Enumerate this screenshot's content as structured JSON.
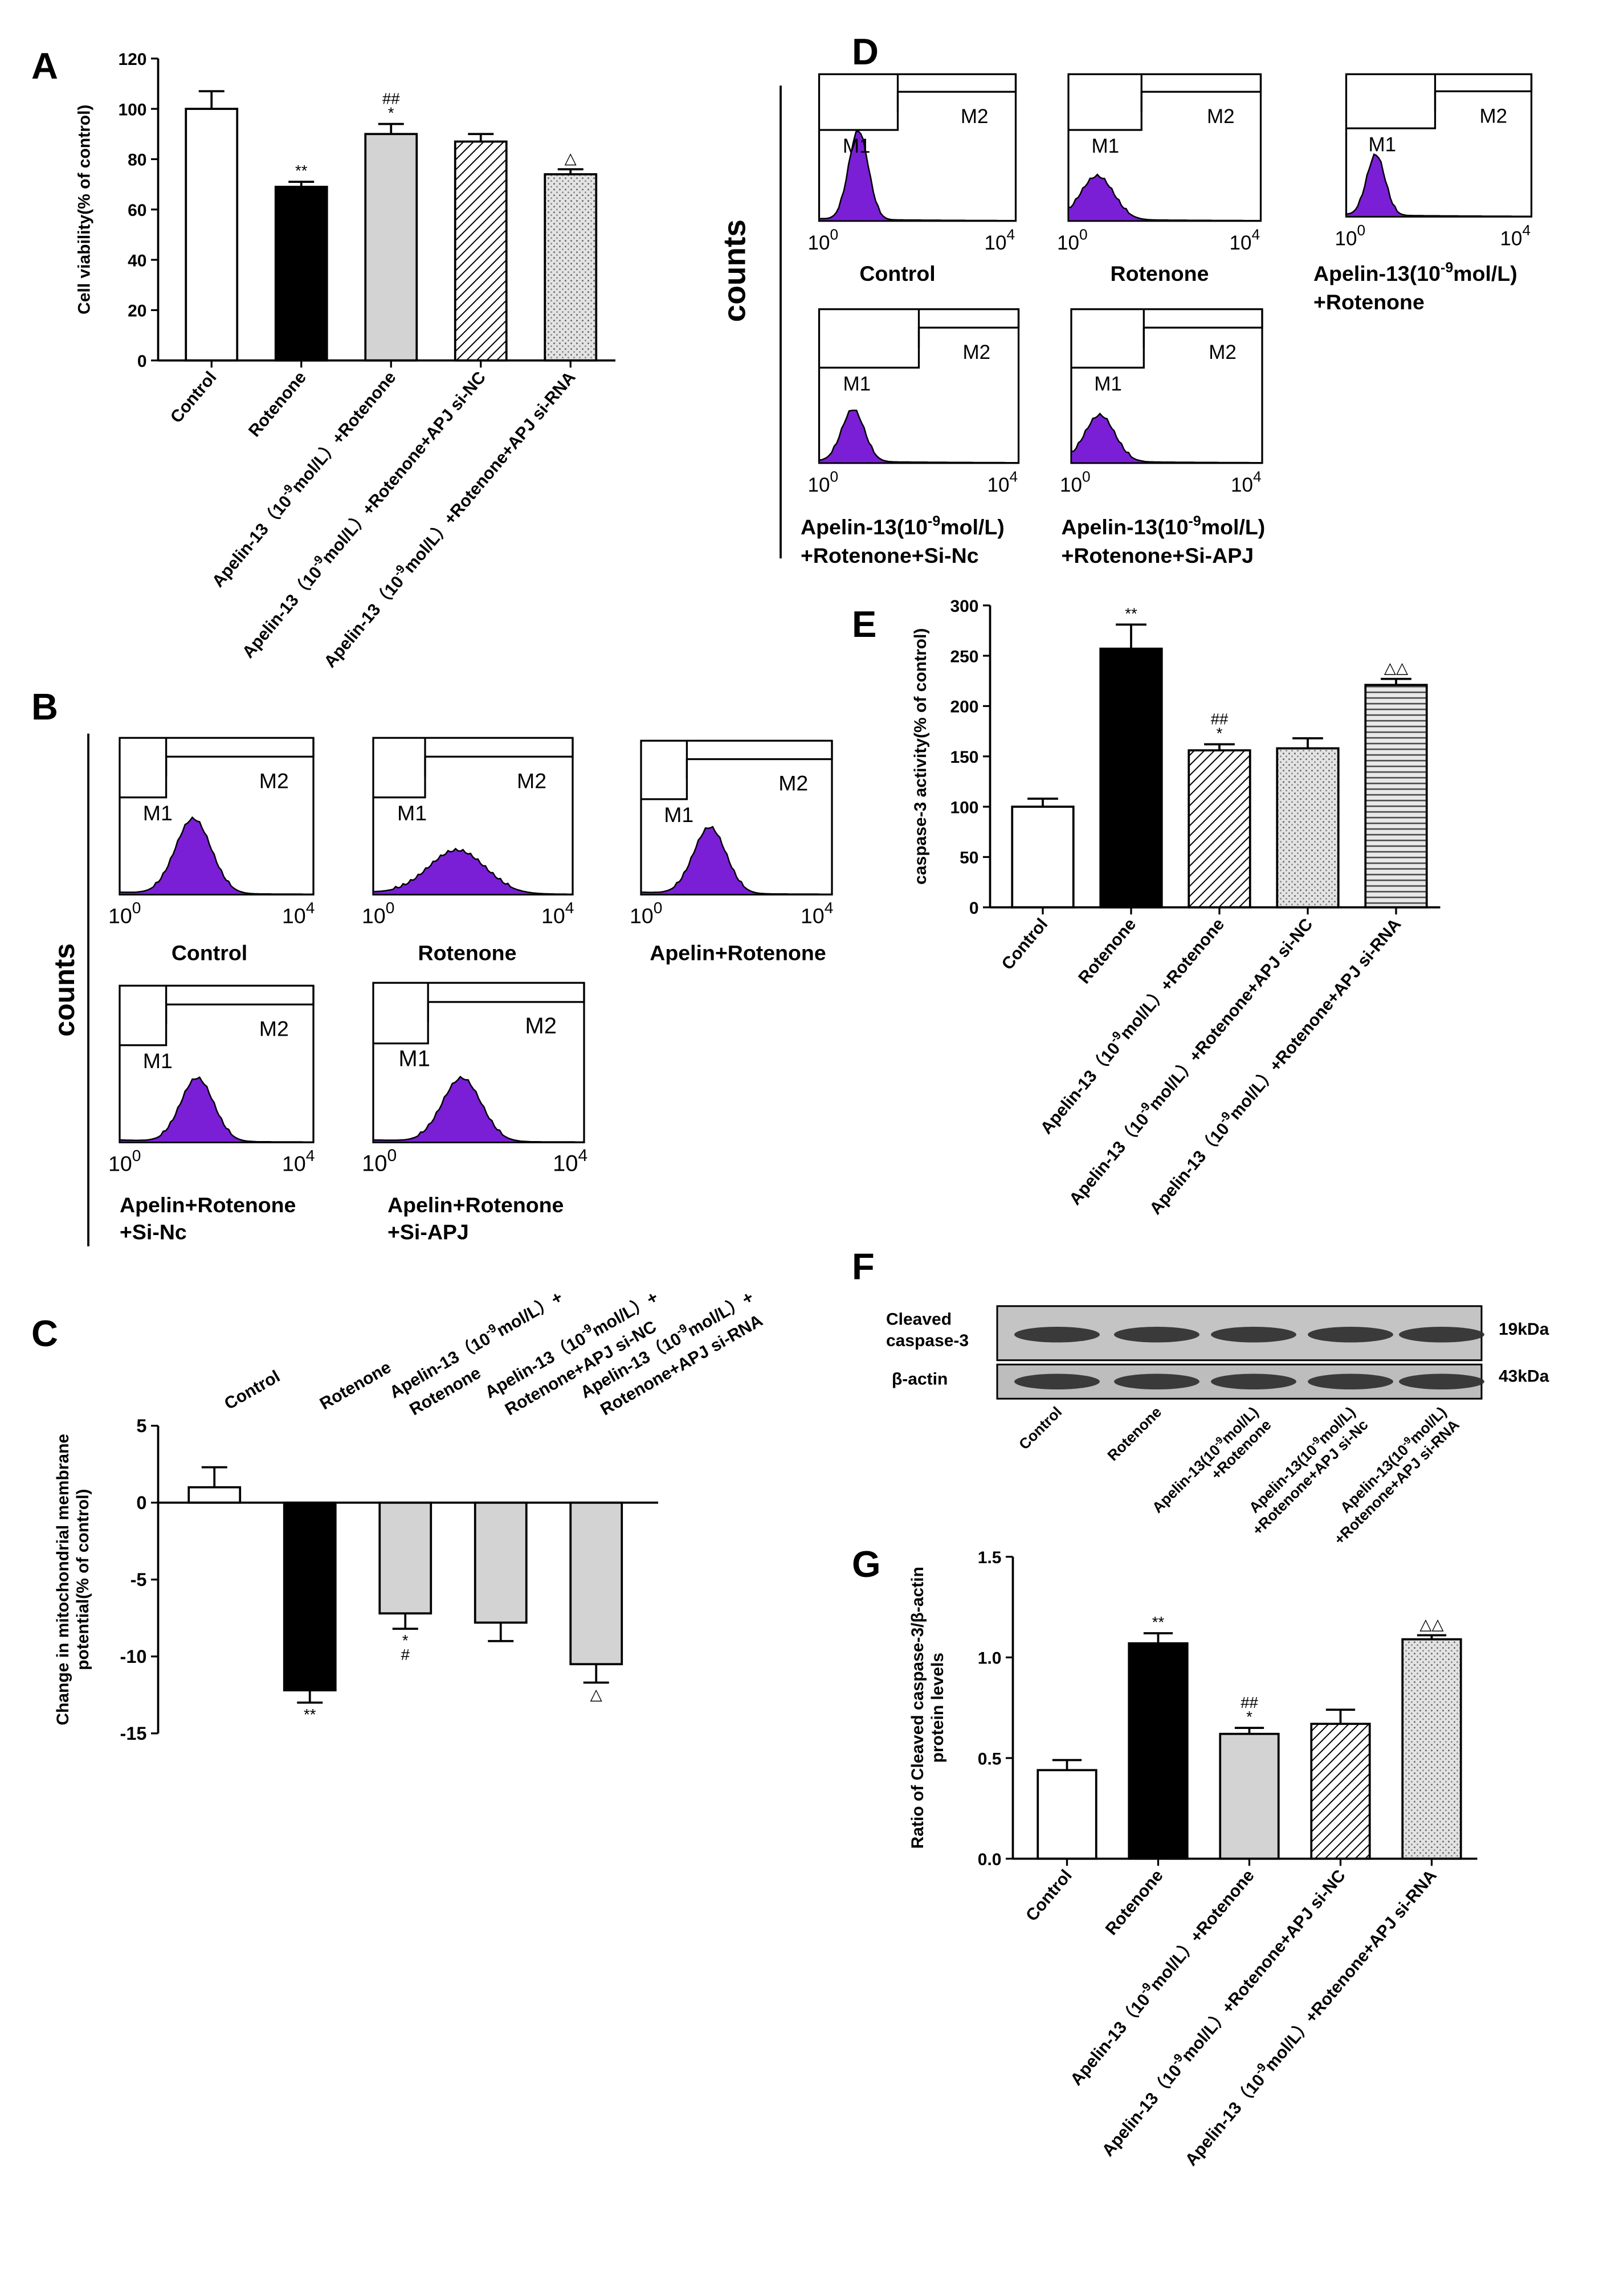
{
  "colors": {
    "ink": "#000000",
    "light_gray": "#d3d3d3",
    "dot_gray": "#e3e3e3",
    "purple": "#7a1fd6",
    "blot_bg": "#bdbdbd",
    "band": "#2b2b2b"
  },
  "icons": {
    "hatch_fill": "diagonal-hatch-fill",
    "dot_fill": "dotted-fill",
    "hline_fill": "horizontal-line-fill"
  },
  "panel_letters": {
    "a": "A",
    "b": "B",
    "c": "C",
    "d": "D",
    "e": "E",
    "f": "F",
    "g": "G"
  },
  "common": {
    "counts": "counts",
    "m1": "M1",
    "m2": "M2",
    "tick_lo": "10",
    "tick_lo_exp": "0",
    "tick_hi": "10",
    "tick_hi_exp": "4"
  },
  "panel_b_labels": [
    "Control",
    "Rotenone",
    "Apelin+Rotenone",
    "Apelin+Rotenone",
    "+Si-Nc",
    "Apelin+Rotenone",
    "+Si-APJ"
  ],
  "panel_d_labels": [
    "Control",
    "Rotenone",
    "Apelin-13(10",
    "-9",
    "mol/L)",
    "+Rotenone",
    "Apelin-13(10",
    "-9",
    "mol/L)",
    "+Rotenone+Si-Nc",
    "Apelin-13(10",
    "-9",
    "mol/L)",
    "+Rotenone+Si-APJ"
  ],
  "panel_f": {
    "rows": [
      "Cleaved",
      "caspase-3",
      "β-actin"
    ],
    "sizes": [
      "19kDa",
      "43kDa"
    ],
    "lanes": [
      [
        "Control"
      ],
      [
        "Rotenone"
      ],
      [
        "Apelin-13(10",
        "-9",
        "mol/L)",
        "+Rotenone"
      ],
      [
        "Apelin-13(10",
        "-9",
        "mol/L)",
        "+Rotenone+APJ si-Nc"
      ],
      [
        "Apelin-13(10",
        "-9",
        "mol/L)",
        "+Rotenone+APJ si-RNA"
      ]
    ]
  },
  "chart_data": [
    {
      "id": "A",
      "type": "bar",
      "ylabel": "Cell viability(% of control)",
      "ylim": [
        0,
        120
      ],
      "yticks": [
        0,
        20,
        40,
        60,
        80,
        100,
        120
      ],
      "categories": [
        [
          "Control"
        ],
        [
          "Rotenone"
        ],
        [
          "Apelin-13（10",
          "-9",
          "mol/L）+Rotenone"
        ],
        [
          "Apelin-13（10",
          "-9",
          "mol/L）+Rotenone+APJ si-NC"
        ],
        [
          "Apelin-13（10",
          "-9",
          "mol/L）+Rotenone+APJ si-RNA"
        ]
      ],
      "values": [
        100,
        69,
        90,
        87,
        74
      ],
      "errors": [
        7,
        2,
        4,
        3,
        2
      ],
      "fills": [
        "white",
        "black",
        "gray",
        "hatch",
        "dots"
      ],
      "annotations": [
        "",
        "**",
        "##\n*",
        "",
        "△"
      ]
    },
    {
      "id": "C",
      "type": "bar",
      "ylabel": "Change in mitochondrial membrane\npotential(% of control)",
      "ylim": [
        -15,
        5
      ],
      "yticks": [
        -15,
        -10,
        -5,
        0,
        5
      ],
      "categories": [
        [
          "Control"
        ],
        [
          "Rotenone"
        ],
        [
          "Apelin-13（10",
          "-9",
          "mol/L）+",
          "Rotenone"
        ],
        [
          "Apelin-13（10",
          "-9",
          "mol/L）+",
          "Rotenone+APJ si-NC"
        ],
        [
          "Apelin-13（10",
          "-9",
          "mol/L）+",
          "Rotenone+APJ si-RNA"
        ]
      ],
      "values": [
        1,
        -12.2,
        -7.2,
        -7.8,
        -10.5
      ],
      "errors": [
        1.3,
        0.8,
        1,
        1.2,
        1.2
      ],
      "fills": [
        "white",
        "black",
        "gray",
        "gray",
        "gray"
      ],
      "annotations": [
        "",
        "**",
        "*\n#",
        "",
        "△"
      ]
    },
    {
      "id": "E",
      "type": "bar",
      "ylabel": "caspase-3 activity(% of control)",
      "ylim": [
        0,
        300
      ],
      "yticks": [
        0,
        50,
        100,
        150,
        200,
        250,
        300
      ],
      "categories": [
        [
          "Control"
        ],
        [
          "Rotenone"
        ],
        [
          "Apelin-13（10",
          "-9",
          "mol/L）+Rotenone"
        ],
        [
          "Apelin-13（10",
          "-9",
          "mol/L）+Rotenone+APJ si-NC"
        ],
        [
          "Apelin-13（10",
          "-9",
          "mol/L）+Rotenone+APJ si-RNA"
        ]
      ],
      "values": [
        100,
        257,
        156,
        158,
        221
      ],
      "errors": [
        8,
        24,
        6,
        10,
        6
      ],
      "fills": [
        "white",
        "black",
        "hatch",
        "dots",
        "hlines"
      ],
      "annotations": [
        "",
        "**",
        "##\n*",
        "",
        "△△"
      ]
    },
    {
      "id": "G",
      "type": "bar",
      "ylabel": "Ratio of Cleaved caspase-3/β-actin\nprotein levels",
      "ylim": [
        0,
        1.5
      ],
      "yticks": [
        0.0,
        0.5,
        1.0,
        1.5
      ],
      "categories": [
        [
          "Control"
        ],
        [
          "Rotenone"
        ],
        [
          "Apelin-13（10",
          "-9",
          "mol/L）+Rotenone"
        ],
        [
          "Apelin-13（10",
          "-9",
          "mol/L）+Rotenone+APJ si-NC"
        ],
        [
          "Apelin-13（10",
          "-9",
          "mol/L）+Rotenone+APJ si-RNA"
        ]
      ],
      "values": [
        0.44,
        1.07,
        0.62,
        0.67,
        1.09
      ],
      "errors": [
        0.05,
        0.05,
        0.03,
        0.07,
        0.02
      ],
      "fills": [
        "white",
        "black",
        "gray",
        "hatch",
        "dots"
      ],
      "annotations": [
        "",
        "**",
        "##\n*",
        "",
        "△△"
      ]
    }
  ]
}
